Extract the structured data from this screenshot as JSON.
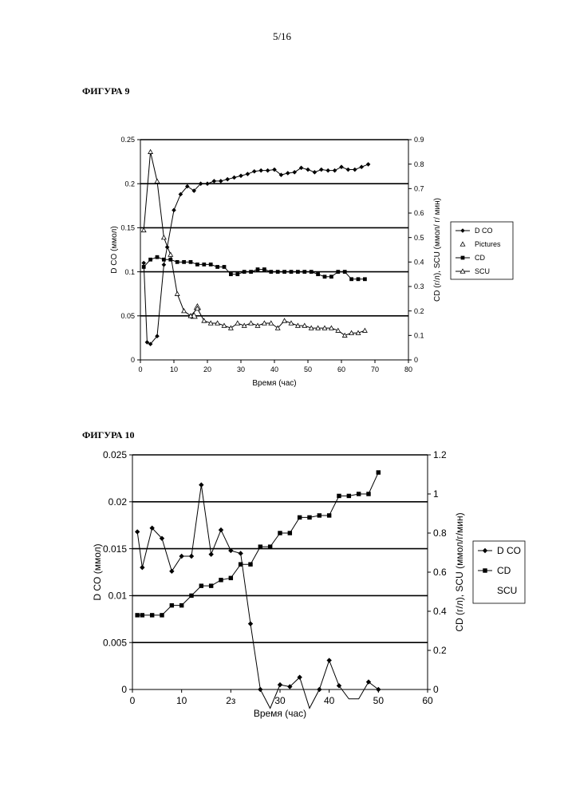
{
  "page_number": "5/16",
  "figures": [
    {
      "caption": "ФИГУРА 9"
    },
    {
      "caption": "ФИГУРА 10"
    }
  ],
  "chart_data": [
    {
      "type": "line",
      "title": "",
      "xlabel": "Время (час)",
      "ylabel": "D CO (ммол)",
      "y2label": "CD (г/л), SCU (ммол/ г/ мин)",
      "xlim": [
        0,
        80
      ],
      "ylim": [
        0,
        0.25
      ],
      "y2lim": [
        0,
        0.9
      ],
      "x_ticks": [
        0,
        10,
        20,
        30,
        40,
        50,
        60,
        70,
        80
      ],
      "y_ticks": [
        "0",
        "0.05",
        "0.1",
        "0.15",
        "0.2",
        "0.25"
      ],
      "y2_ticks": [
        "0",
        "0.1",
        "0.2",
        "0.3",
        "0.4",
        "0.5",
        "0.6",
        "0.7",
        "0.8",
        "0.9"
      ],
      "legend_position": "right",
      "series": [
        {
          "name": "D CO",
          "axis": "left",
          "marker": "diamond",
          "x": [
            1,
            2,
            3,
            5,
            7,
            8,
            10,
            12,
            14,
            16,
            18,
            20,
            22,
            24,
            26,
            28,
            30,
            32,
            34,
            36,
            38,
            40,
            42,
            44,
            46,
            48,
            50,
            52,
            54,
            56,
            58,
            60,
            62,
            64,
            66,
            68
          ],
          "y": [
            0.11,
            0.02,
            0.018,
            0.027,
            0.108,
            0.128,
            0.17,
            0.188,
            0.197,
            0.192,
            0.2,
            0.2,
            0.203,
            0.203,
            0.205,
            0.207,
            0.209,
            0.211,
            0.214,
            0.215,
            0.215,
            0.216,
            0.21,
            0.212,
            0.213,
            0.218,
            0.216,
            0.213,
            0.216,
            0.215,
            0.215,
            0.219,
            0.216,
            0.216,
            0.219,
            0.222
          ]
        },
        {
          "name": "Pictures",
          "axis": "left",
          "marker": "open-triangle-large",
          "x": [
            16,
            17
          ],
          "y": [
            0.05,
            0.06
          ]
        },
        {
          "name": "CD",
          "axis": "right",
          "marker": "square",
          "x": [
            1,
            3,
            5,
            7,
            9,
            11,
            13,
            15,
            17,
            19,
            21,
            23,
            25,
            27,
            29,
            31,
            33,
            35,
            37,
            39,
            41,
            43,
            45,
            47,
            49,
            51,
            53,
            55,
            57,
            59,
            61,
            63,
            65,
            67
          ],
          "y": [
            0.38,
            0.41,
            0.42,
            0.41,
            0.41,
            0.4,
            0.4,
            0.4,
            0.39,
            0.39,
            0.39,
            0.38,
            0.38,
            0.35,
            0.35,
            0.36,
            0.36,
            0.37,
            0.37,
            0.36,
            0.36,
            0.36,
            0.36,
            0.36,
            0.36,
            0.36,
            0.35,
            0.34,
            0.34,
            0.36,
            0.36,
            0.33,
            0.33,
            0.33
          ]
        },
        {
          "name": "SCU",
          "axis": "right",
          "marker": "open-triangle",
          "x": [
            1,
            3,
            5,
            7,
            9,
            11,
            13,
            15,
            17,
            19,
            21,
            23,
            25,
            27,
            29,
            31,
            33,
            35,
            37,
            39,
            41,
            43,
            45,
            47,
            49,
            51,
            53,
            55,
            57,
            59,
            61,
            63,
            65,
            67
          ],
          "y": [
            0.53,
            0.85,
            0.73,
            0.5,
            0.43,
            0.27,
            0.2,
            0.18,
            0.21,
            0.16,
            0.15,
            0.15,
            0.14,
            0.13,
            0.15,
            0.14,
            0.15,
            0.14,
            0.15,
            0.15,
            0.13,
            0.16,
            0.15,
            0.14,
            0.14,
            0.13,
            0.13,
            0.13,
            0.13,
            0.12,
            0.1,
            0.11,
            0.11,
            0.12
          ]
        }
      ]
    },
    {
      "type": "line",
      "title": "",
      "xlabel": "Время (час)",
      "ylabel": "D CO (ммол)",
      "y2label": "CD (г/л), SCU (ммол/г/мин)",
      "xlim": [
        0,
        60
      ],
      "ylim": [
        0,
        0.025
      ],
      "y2lim": [
        0,
        1.2
      ],
      "x_ticks": [
        "0",
        "10",
        "2з",
        "30",
        "40",
        "50",
        "60"
      ],
      "y_ticks": [
        "0",
        "0.005",
        "0.01",
        "0.015",
        "0.02",
        "0.025"
      ],
      "y2_ticks": [
        "0",
        "0.2",
        "0.4",
        "0.6",
        "0.8",
        "1",
        "1.2"
      ],
      "legend_position": "right",
      "series": [
        {
          "name": "D CO",
          "axis": "left",
          "marker": "diamond",
          "x": [
            1,
            2,
            4,
            6,
            8,
            10,
            12,
            14,
            16,
            18,
            20,
            22,
            24,
            26,
            28,
            30,
            32,
            34,
            36,
            38,
            40,
            42,
            44,
            46,
            48,
            50
          ],
          "y": [
            0.0168,
            0.013,
            0.0172,
            0.0161,
            0.0126,
            0.0142,
            0.0142,
            0.0218,
            0.0144,
            0.017,
            0.0148,
            0.0145,
            0.007,
            0.0,
            -0.002,
            0.0005,
            0.0003,
            0.0013,
            -0.002,
            0.0,
            0.0031,
            0.0004,
            -0.001,
            -0.001,
            0.0008,
            0.0
          ]
        },
        {
          "name": "CD",
          "axis": "right",
          "marker": "square",
          "x": [
            1,
            2,
            4,
            6,
            8,
            10,
            12,
            14,
            16,
            18,
            20,
            22,
            24,
            26,
            28,
            30,
            32,
            34,
            36,
            38,
            40,
            42,
            44,
            46,
            48,
            50
          ],
          "y": [
            0.38,
            0.38,
            0.38,
            0.38,
            0.43,
            0.43,
            0.48,
            0.53,
            0.53,
            0.56,
            0.57,
            0.64,
            0.64,
            0.73,
            0.73,
            0.8,
            0.8,
            0.88,
            0.88,
            0.89,
            0.89,
            0.99,
            0.99,
            1.0,
            1.0,
            1.11
          ]
        },
        {
          "name": "SCU",
          "axis": "right",
          "marker": "none",
          "x": [],
          "y": []
        }
      ]
    }
  ]
}
